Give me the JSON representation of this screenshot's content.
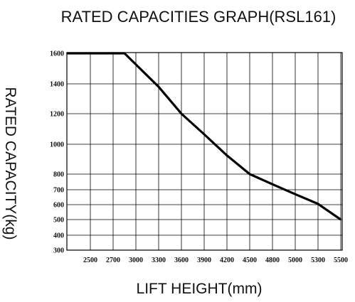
{
  "chart_data": {
    "type": "line",
    "title": "RATED CAPACITIES GRAPH(RSL161)",
    "xlabel": "LIFT HEIGHT(mm)",
    "ylabel": "RATED CAPACITY(kg)",
    "x_ticks": [
      "2500",
      "2700",
      "3000",
      "3300",
      "3600",
      "3900",
      "4200",
      "4500",
      "4800",
      "5000",
      "5300",
      "5500"
    ],
    "y_ticks": [
      "300",
      "400",
      "500",
      "600",
      "700",
      "800",
      "1000",
      "1200",
      "1400",
      "1600"
    ],
    "grid": true,
    "series": [
      {
        "points": [
          {
            "x": "start",
            "y": 1600
          },
          {
            "x": "2850",
            "y": 1600
          },
          {
            "x": "3300",
            "y": 1380
          },
          {
            "x": "3600",
            "y": 1200
          },
          {
            "x": "3900",
            "y": 1065
          },
          {
            "x": "4200",
            "y": 925
          },
          {
            "x": "4500",
            "y": 800
          },
          {
            "x": "4800",
            "y": 735
          },
          {
            "x": "5000",
            "y": 670
          },
          {
            "x": "5300",
            "y": 605
          },
          {
            "x": "5500",
            "y": 500
          }
        ]
      }
    ],
    "line_color": "#000000"
  }
}
